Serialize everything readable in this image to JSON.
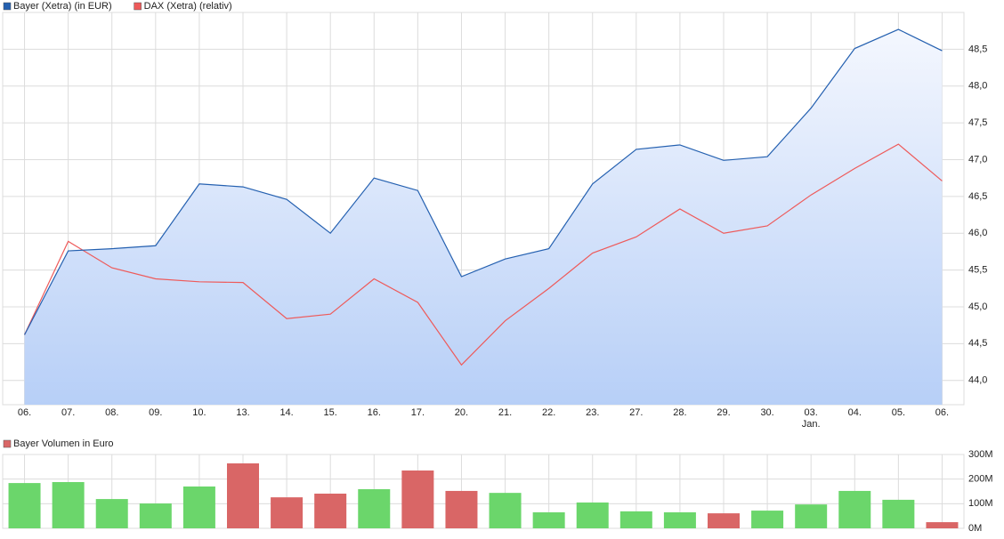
{
  "chart_data": [
    {
      "type": "line",
      "categories": [
        "06.",
        "07.",
        "08.",
        "09.",
        "10.",
        "13.",
        "14.",
        "15.",
        "16.",
        "17.",
        "20.",
        "21.",
        "22.",
        "23.",
        "27.",
        "28.",
        "29.",
        "30.",
        "03.",
        "04.",
        "05.",
        "06."
      ],
      "month_label": "Jan.",
      "series": [
        {
          "name": "Bayer (Xetra) (in EUR)",
          "color": "#2460b0",
          "area": true,
          "values": [
            44.62,
            45.76,
            45.79,
            45.83,
            46.67,
            46.63,
            46.46,
            46.0,
            46.75,
            46.58,
            45.41,
            45.65,
            45.79,
            46.67,
            47.14,
            47.2,
            46.99,
            47.04,
            47.7,
            48.51,
            48.77,
            48.48
          ]
        },
        {
          "name": "DAX (Xetra) (relativ)",
          "color": "#ee5a5a",
          "values": [
            44.62,
            45.89,
            45.53,
            45.38,
            45.34,
            45.33,
            44.84,
            44.9,
            45.38,
            45.06,
            44.21,
            44.81,
            45.25,
            45.73,
            45.95,
            46.33,
            46.0,
            46.1,
            46.52,
            46.88,
            47.21,
            46.71
          ]
        }
      ],
      "ylim": [
        43.67,
        49.0
      ],
      "yticks": [
        {
          "value": 44.0,
          "label": "44,0"
        },
        {
          "value": 44.5,
          "label": "44,5"
        },
        {
          "value": 45.0,
          "label": "45,0"
        },
        {
          "value": 45.5,
          "label": "45,5"
        },
        {
          "value": 46.0,
          "label": "46,0"
        },
        {
          "value": 46.5,
          "label": "46,5"
        },
        {
          "value": 47.0,
          "label": "47,0"
        },
        {
          "value": 47.5,
          "label": "47,5"
        },
        {
          "value": 48.0,
          "label": "48,0"
        },
        {
          "value": 48.5,
          "label": "48,5"
        }
      ],
      "grid": true
    },
    {
      "type": "bar",
      "series": [
        {
          "name": "Bayer Volumen in Euro",
          "color": "#d96666",
          "values": [
            184,
            188,
            119,
            101,
            170,
            264,
            126,
            141,
            159,
            235,
            152,
            144,
            65,
            105,
            69,
            65,
            61,
            72,
            97,
            152,
            116,
            25
          ],
          "colors": [
            "#6bd66b",
            "#6bd66b",
            "#6bd66b",
            "#6bd66b",
            "#6bd66b",
            "#d96666",
            "#d96666",
            "#d96666",
            "#6bd66b",
            "#d96666",
            "#d96666",
            "#6bd66b",
            "#6bd66b",
            "#6bd66b",
            "#6bd66b",
            "#6bd66b",
            "#d96666",
            "#6bd66b",
            "#6bd66b",
            "#6bd66b",
            "#6bd66b",
            "#d96666"
          ]
        }
      ],
      "ylim": [
        0,
        300
      ],
      "yticks": [
        {
          "value": 0,
          "label": "0M"
        },
        {
          "value": 100,
          "label": "100M"
        },
        {
          "value": 200,
          "label": "200M"
        },
        {
          "value": 300,
          "label": "300M"
        }
      ],
      "grid": true
    }
  ]
}
